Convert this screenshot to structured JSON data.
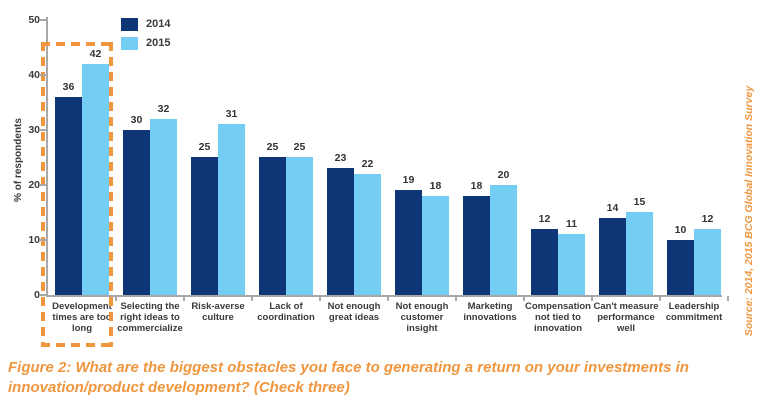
{
  "figure": {
    "caption": "Figure 2: What are the biggest obstacles you face to generating a return on your investments in innovation/product development? (Check three)",
    "source": "Source: 2014, 2015 BCG Global Innovation Survey"
  },
  "colors": {
    "navy": "#0e3677",
    "light_blue": "#74cdf2",
    "orange": "#f0963e",
    "text_gray": "#3a3a3a",
    "axis_gray": "#a8a8a8"
  },
  "chart_data": {
    "type": "bar",
    "title": "",
    "xlabel": "",
    "ylabel": "% of respondents",
    "ylim": [
      0,
      50
    ],
    "yticks": [
      0,
      10,
      20,
      30,
      40,
      50
    ],
    "grid": false,
    "legend_position": "top-left",
    "categories": [
      "Development times are too long",
      "Selecting the right ideas to commercialize",
      "Risk-averse culture",
      "Lack of coordination",
      "Not enough great ideas",
      "Not enough customer insight",
      "Marketing innovations",
      "Compensation not tied to innovation",
      "Can't measure performance well",
      "Leadership commitment"
    ],
    "series": [
      {
        "name": "2014",
        "color": "#0e3677",
        "values": [
          36,
          30,
          25,
          25,
          23,
          19,
          18,
          12,
          14,
          10
        ]
      },
      {
        "name": "2015",
        "color": "#74cdf2",
        "values": [
          42,
          32,
          31,
          25,
          22,
          18,
          20,
          11,
          15,
          12
        ]
      }
    ],
    "highlight": {
      "category": "Development times are too long",
      "style": "dashed-orange-box"
    }
  }
}
